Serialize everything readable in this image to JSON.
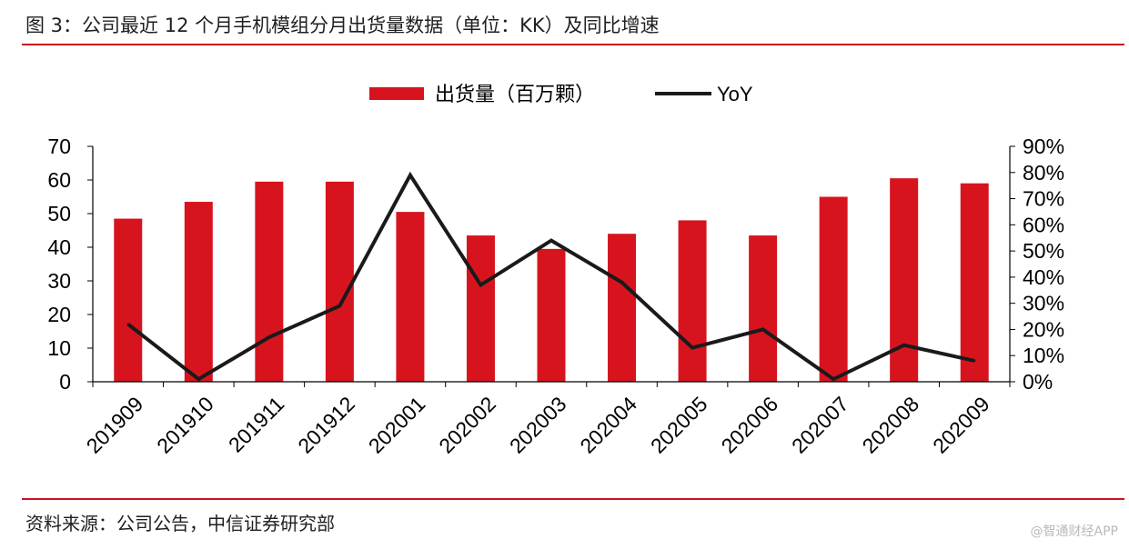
{
  "figure": {
    "title": "图 3：公司最近 12 个月手机模组分月出货量数据（单位：KK）及同比增速",
    "source": "资料来源：公司公告，中信证券研究部",
    "watermark": "@智通财经APP"
  },
  "colors": {
    "bar": "#d7141e",
    "line": "#1a1a1a",
    "rule": "#c8141e"
  },
  "chart_data": {
    "type": "bar",
    "categories": [
      "201909",
      "201910",
      "201911",
      "201912",
      "202001",
      "202002",
      "202003",
      "202004",
      "202005",
      "202006",
      "202007",
      "202008",
      "202009"
    ],
    "series": [
      {
        "name": "出货量（百万颗）",
        "type": "bar",
        "axis": "left",
        "values": [
          48.5,
          53.5,
          59.5,
          59.5,
          50.5,
          43.5,
          39.5,
          44,
          48,
          43.5,
          55,
          60.5,
          59
        ]
      },
      {
        "name": "YoY",
        "type": "line",
        "axis": "right",
        "values": [
          0.22,
          0.01,
          0.17,
          0.29,
          0.79,
          0.37,
          0.54,
          0.38,
          0.13,
          0.2,
          0.01,
          0.14,
          0.08
        ]
      }
    ],
    "y_left": {
      "min": 0,
      "max": 70,
      "ticks": [
        "0",
        "10",
        "20",
        "30",
        "40",
        "50",
        "60",
        "70"
      ]
    },
    "y_right": {
      "min": 0,
      "max": 0.9,
      "ticks": [
        "0%",
        "10%",
        "20%",
        "30%",
        "40%",
        "50%",
        "60%",
        "70%",
        "80%",
        "90%"
      ]
    },
    "xlabel": "",
    "ylabel": "",
    "grid": false,
    "legend_position": "top-center"
  }
}
